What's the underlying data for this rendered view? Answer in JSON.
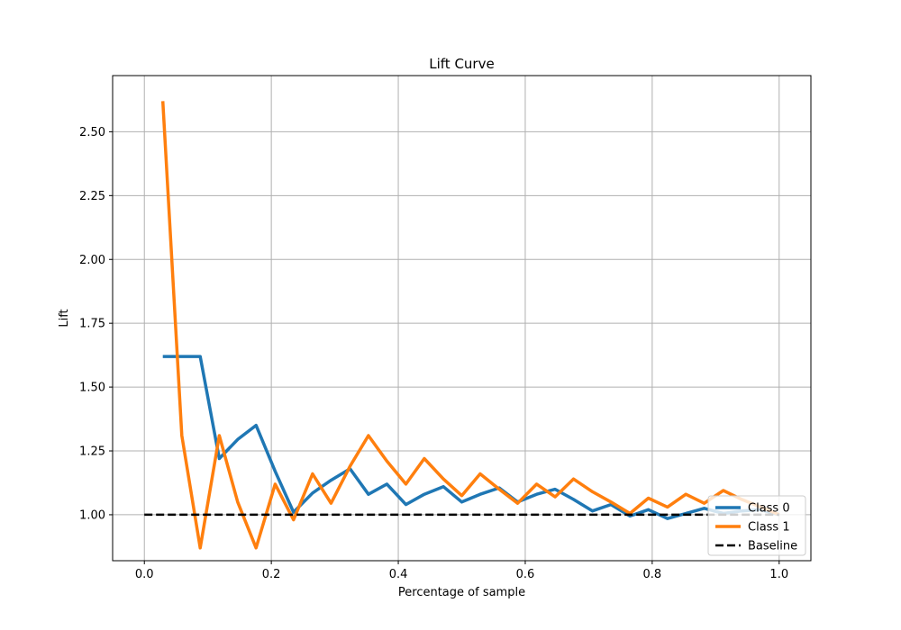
{
  "chart_data": {
    "type": "line",
    "title": "Lift Curve",
    "xlabel": "Percentage of sample",
    "ylabel": "Lift",
    "xlim": [
      -0.05,
      1.05
    ],
    "ylim": [
      0.82,
      2.72
    ],
    "xticks": [
      0.0,
      0.2,
      0.4,
      0.6,
      0.8,
      1.0
    ],
    "xtick_labels": [
      "0.0",
      "0.2",
      "0.4",
      "0.6",
      "0.8",
      "1.0"
    ],
    "yticks": [
      1.0,
      1.25,
      1.5,
      1.75,
      2.0,
      2.25,
      2.5
    ],
    "ytick_labels": [
      "1.00",
      "1.25",
      "1.50",
      "1.75",
      "2.00",
      "2.25",
      "2.50"
    ],
    "grid": true,
    "legend_position": "bottom-right",
    "series": [
      {
        "name": "Class 0",
        "color": "#1f77b4",
        "style": "solid",
        "points": [
          [
            0.029,
            1.62
          ],
          [
            0.059,
            1.62
          ],
          [
            0.088,
            1.62
          ],
          [
            0.118,
            1.22
          ],
          [
            0.147,
            1.295
          ],
          [
            0.176,
            1.35
          ],
          [
            0.206,
            1.17
          ],
          [
            0.235,
            1.01
          ],
          [
            0.265,
            1.085
          ],
          [
            0.294,
            1.135
          ],
          [
            0.324,
            1.18
          ],
          [
            0.353,
            1.08
          ],
          [
            0.382,
            1.12
          ],
          [
            0.412,
            1.04
          ],
          [
            0.441,
            1.08
          ],
          [
            0.471,
            1.11
          ],
          [
            0.5,
            1.05
          ],
          [
            0.529,
            1.08
          ],
          [
            0.559,
            1.105
          ],
          [
            0.588,
            1.05
          ],
          [
            0.618,
            1.08
          ],
          [
            0.647,
            1.1
          ],
          [
            0.676,
            1.06
          ],
          [
            0.706,
            1.015
          ],
          [
            0.735,
            1.04
          ],
          [
            0.765,
            0.995
          ],
          [
            0.794,
            1.02
          ],
          [
            0.824,
            0.985
          ],
          [
            0.853,
            1.005
          ],
          [
            0.882,
            1.025
          ],
          [
            0.912,
            1.005
          ],
          [
            0.941,
            1.015
          ],
          [
            0.971,
            1.02
          ],
          [
            1.0,
            1.0
          ]
        ]
      },
      {
        "name": "Class 1",
        "color": "#ff7f0e",
        "style": "solid",
        "points": [
          [
            0.029,
            2.62
          ],
          [
            0.059,
            1.31
          ],
          [
            0.088,
            0.87
          ],
          [
            0.118,
            1.31
          ],
          [
            0.147,
            1.05
          ],
          [
            0.176,
            0.87
          ],
          [
            0.206,
            1.12
          ],
          [
            0.235,
            0.98
          ],
          [
            0.265,
            1.16
          ],
          [
            0.294,
            1.045
          ],
          [
            0.324,
            1.19
          ],
          [
            0.353,
            1.31
          ],
          [
            0.382,
            1.21
          ],
          [
            0.412,
            1.12
          ],
          [
            0.441,
            1.22
          ],
          [
            0.471,
            1.14
          ],
          [
            0.5,
            1.075
          ],
          [
            0.529,
            1.16
          ],
          [
            0.559,
            1.1
          ],
          [
            0.588,
            1.045
          ],
          [
            0.618,
            1.12
          ],
          [
            0.647,
            1.07
          ],
          [
            0.676,
            1.14
          ],
          [
            0.706,
            1.09
          ],
          [
            0.735,
            1.05
          ],
          [
            0.765,
            1.005
          ],
          [
            0.794,
            1.065
          ],
          [
            0.824,
            1.03
          ],
          [
            0.853,
            1.08
          ],
          [
            0.882,
            1.045
          ],
          [
            0.912,
            1.095
          ],
          [
            0.941,
            1.06
          ],
          [
            0.971,
            1.03
          ],
          [
            1.0,
            1.0
          ]
        ]
      },
      {
        "name": "Baseline",
        "color": "#000000",
        "style": "dashed",
        "points": [
          [
            0.0,
            1.0
          ],
          [
            1.0,
            1.0
          ]
        ]
      }
    ]
  }
}
